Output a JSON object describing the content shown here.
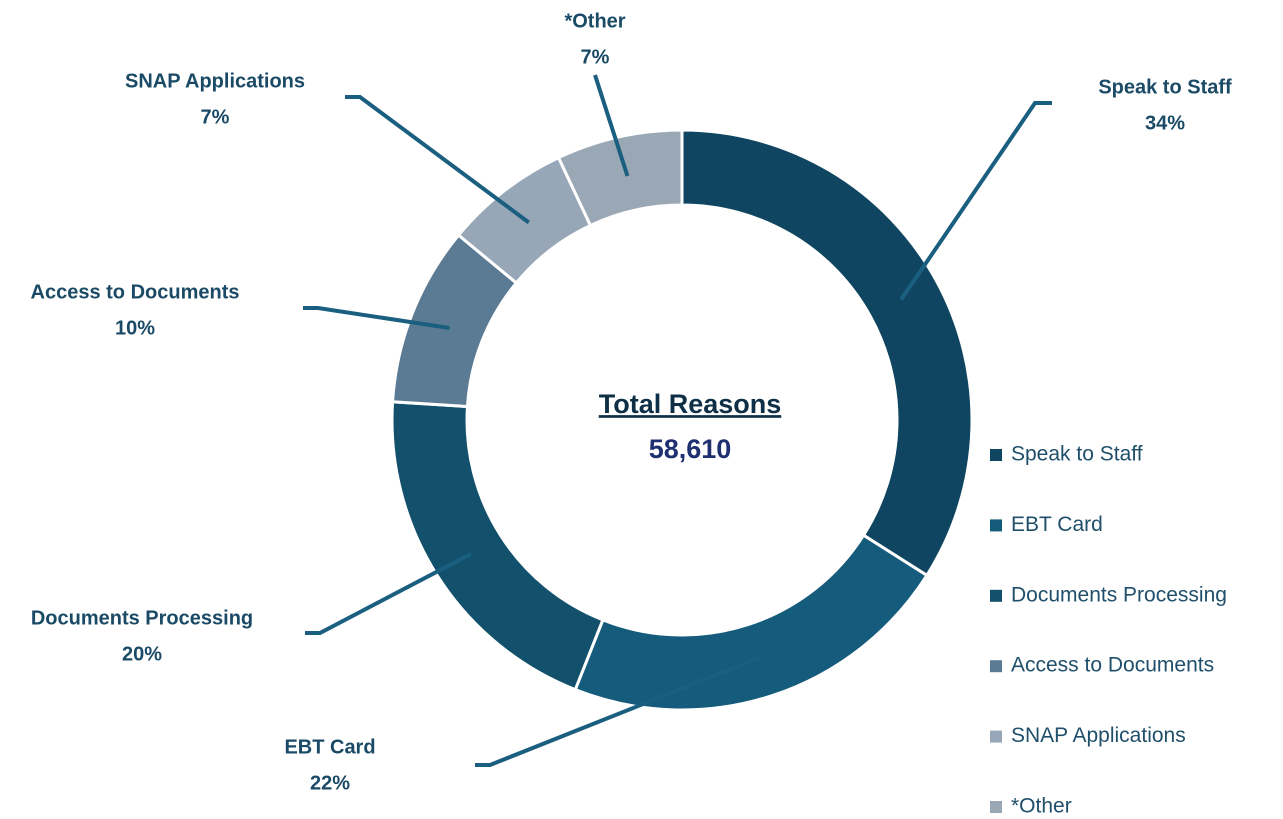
{
  "chart_data": {
    "type": "donut",
    "categories": [
      "Speak to Staff",
      "EBT Card",
      "Documents Processing",
      "Access to Documents",
      "SNAP Applications",
      "*Other"
    ],
    "values": [
      34,
      22,
      20,
      10,
      7,
      7
    ],
    "value_labels": [
      "34%",
      "22%",
      "20%",
      "10%",
      "7%",
      "7%"
    ],
    "colors": [
      "#0f4560",
      "#155b7c",
      "#12506c",
      "#5b7a94",
      "#97a7b7",
      "#9aa8b6"
    ],
    "center_title": "Total Reasons",
    "center_value": {
      "value": 58610,
      "label": "58,610"
    },
    "legend": "right"
  }
}
